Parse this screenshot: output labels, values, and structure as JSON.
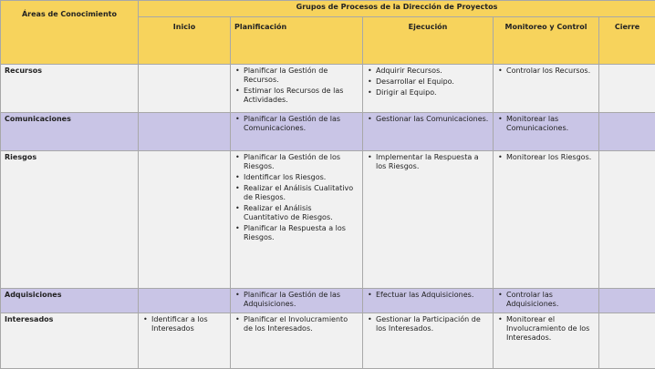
{
  "header": {
    "areas": "Áreas de  Conocimiento",
    "groups": "Grupos de Procesos de la Dirección de Proyectos",
    "columns": [
      "Inicio",
      "Planificación",
      "Ejecución",
      "Monitoreo  y Control",
      "Cierre"
    ]
  },
  "rows": [
    {
      "area": "Recursos",
      "style": "white",
      "cells": [
        [],
        [
          "Planificar la Gestión de Recursos.",
          "Estimar los Recursos de  las Actividades."
        ],
        [
          "Adquirir Recursos.",
          "Desarrollar el Equipo.",
          "Dirigir al Equipo."
        ],
        [
          "Controlar los Recursos."
        ],
        []
      ]
    },
    {
      "area": "Comunicaciones",
      "style": "purple",
      "cells": [
        [],
        [
          "Planificar la Gestión de  las Comunicaciones."
        ],
        [
          "Gestionar las Comunicaciones."
        ],
        [
          "Monitorear las Comunicaciones."
        ],
        []
      ]
    },
    {
      "area": "Riesgos",
      "style": "white",
      "cells": [
        [],
        [
          "Planificar la Gestión de  los Riesgos.",
          "Identificar los Riesgos.",
          "Realizar el Análisis Cualitativo de Riesgos.",
          "Realizar el Análisis Cuantitativo de Riesgos.",
          "Planificar la Respuesta  a los Riesgos."
        ],
        [
          "Implementar la Respuesta a los Riesgos."
        ],
        [
          "Monitorear los Riesgos."
        ],
        []
      ]
    },
    {
      "area": "Adquisiciones",
      "style": "purple",
      "cells": [
        [],
        [
          "Planificar la Gestión de las Adquisiciones."
        ],
        [
          "Efectuar las Adquisiciones."
        ],
        [
          "Controlar las Adquisiciones."
        ],
        []
      ]
    },
    {
      "area": "Interesados",
      "style": "white",
      "cells": [
        [
          "Identificar a los Interesados"
        ],
        [
          "Planificar el  Involucramiento de los  Interesados."
        ],
        [
          "Gestionar la Participación de los Interesados."
        ],
        [
          "Monitorear el Involucramiento de los Interesados."
        ],
        []
      ]
    }
  ],
  "colors": {
    "header": "#f7d35c",
    "purple": "#c9c5e6",
    "white": "#f1f1f1"
  }
}
